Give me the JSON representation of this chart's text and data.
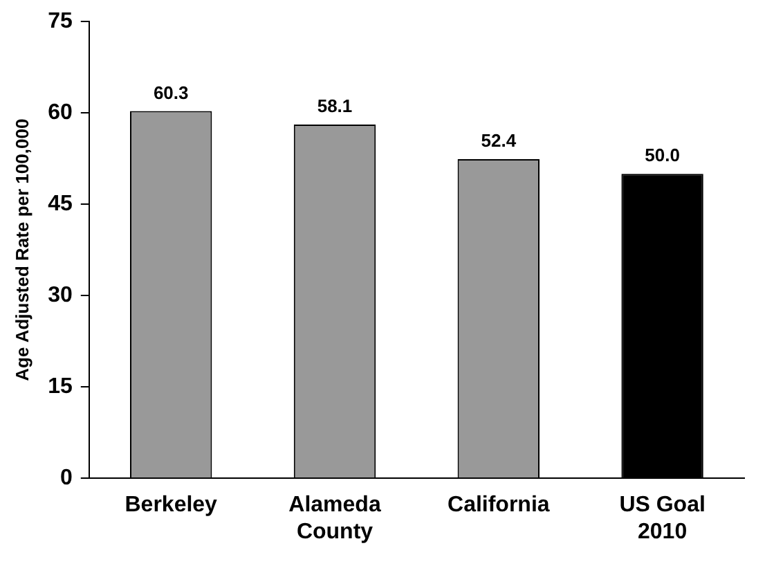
{
  "chart_data": {
    "type": "bar",
    "ylabel": "Age Adjusted Rate per 100,000",
    "categories": [
      "Berkeley",
      "Alameda County",
      "California",
      "US Goal 2010"
    ],
    "values": [
      60.3,
      58.1,
      52.4,
      50.0
    ],
    "value_labels": [
      "60.3",
      "58.1",
      "52.4",
      "50.0"
    ],
    "colors": [
      "#999999",
      "#999999",
      "#999999",
      "#000000"
    ],
    "ylim": [
      0,
      75
    ],
    "yticks": [
      0,
      15,
      30,
      45,
      60,
      75
    ]
  }
}
